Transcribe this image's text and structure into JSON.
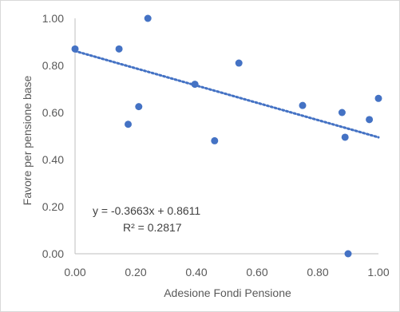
{
  "chart_data": {
    "type": "scatter",
    "title": "",
    "xlabel": "Adesione Fondi Pensione",
    "ylabel": "Favore per pensione base",
    "xlim": [
      0,
      1
    ],
    "ylim": [
      0,
      1
    ],
    "x_ticks": [
      "0.00",
      "0.20",
      "0.40",
      "0.60",
      "0.80",
      "1.00"
    ],
    "y_ticks": [
      "0.00",
      "0.20",
      "0.40",
      "0.60",
      "0.80",
      "1.00"
    ],
    "grid": false,
    "legend": "none",
    "point_color": "#4472C4",
    "series": [
      {
        "x": [
          0.0,
          0.145,
          0.175,
          0.21,
          0.24,
          0.395,
          0.46,
          0.54,
          0.75,
          0.88,
          0.89,
          0.9,
          0.97,
          1.0
        ],
        "y": [
          0.87,
          0.87,
          0.55,
          0.625,
          1.0,
          0.72,
          0.48,
          0.81,
          0.63,
          0.6,
          0.495,
          0.0,
          0.57,
          0.66
        ]
      }
    ],
    "trendline": {
      "type": "linear",
      "slope": -0.3663,
      "intercept": 0.8611,
      "style": "dotted",
      "color": "#4472C4",
      "equation_label": "y = -0.3663x + 0.8611",
      "r2_label": "R² = 0.2817"
    }
  }
}
